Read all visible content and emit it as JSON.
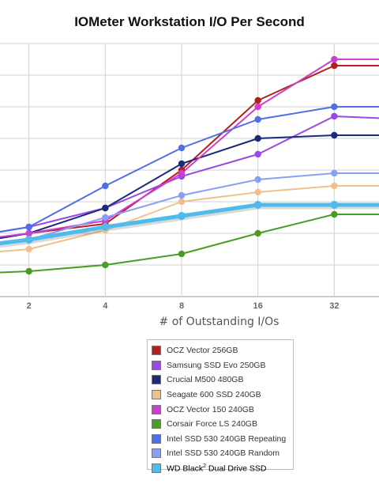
{
  "chart_data": {
    "type": "line",
    "title": "IOMeter Workstation I/O Per Second",
    "xlabel": "# of Outstanding I/Os",
    "ylabel": "",
    "xscale": "log2",
    "x": [
      1,
      2,
      4,
      8,
      16,
      32,
      64
    ],
    "x_tick_labels": [
      "2",
      "4",
      "8",
      "16",
      "32"
    ],
    "ylim": [
      0,
      8
    ],
    "y_tick_labels_visible": false,
    "grid": true,
    "legend_position": "bottom",
    "series": [
      {
        "name": "OCZ Vector 256GB",
        "color": "#b3201e",
        "values": [
          1.6,
          2.0,
          2.3,
          4.0,
          6.2,
          7.3,
          7.3
        ],
        "width": 2
      },
      {
        "name": "Samsung SSD Evo 250GB",
        "color": "#9a48e6",
        "values": [
          1.8,
          2.2,
          2.8,
          3.8,
          4.5,
          5.7,
          5.6
        ],
        "width": 2
      },
      {
        "name": "Crucial M500 480GB",
        "color": "#1c2a7a",
        "values": [
          1.6,
          2.0,
          2.8,
          4.2,
          5.0,
          5.1,
          5.1
        ],
        "width": 2
      },
      {
        "name": "Seagate 600 SSD 240GB",
        "color": "#f0c08a",
        "values": [
          1.3,
          1.5,
          2.1,
          3.0,
          3.3,
          3.5,
          3.5
        ],
        "width": 2
      },
      {
        "name": "OCZ Vector 150 240GB",
        "color": "#cc3fd0",
        "values": [
          1.7,
          2.0,
          2.4,
          3.9,
          6.0,
          7.5,
          7.5
        ],
        "width": 2
      },
      {
        "name": "Corsair Force LS 240GB",
        "color": "#4a9d22",
        "values": [
          0.7,
          0.8,
          1.0,
          1.35,
          2.0,
          2.6,
          2.6
        ],
        "width": 2
      },
      {
        "name": "Intel SSD 530 240GB Repeating",
        "color": "#4e6fe6",
        "values": [
          1.8,
          2.2,
          3.5,
          4.7,
          5.6,
          6.0,
          6.0
        ],
        "width": 2
      },
      {
        "name": "Intel SSD 530 240GB Random",
        "color": "#8a9ef2",
        "values": [
          1.5,
          1.8,
          2.5,
          3.2,
          3.7,
          3.9,
          3.9
        ],
        "width": 2
      },
      {
        "name": "WD Black",
        "name_sup": "2",
        "name_suffix": " Dual Drive SSD",
        "color": "#4fbbeb",
        "values": [
          1.5,
          1.8,
          2.2,
          2.55,
          2.9,
          2.9,
          2.9
        ],
        "width": 5
      }
    ]
  }
}
